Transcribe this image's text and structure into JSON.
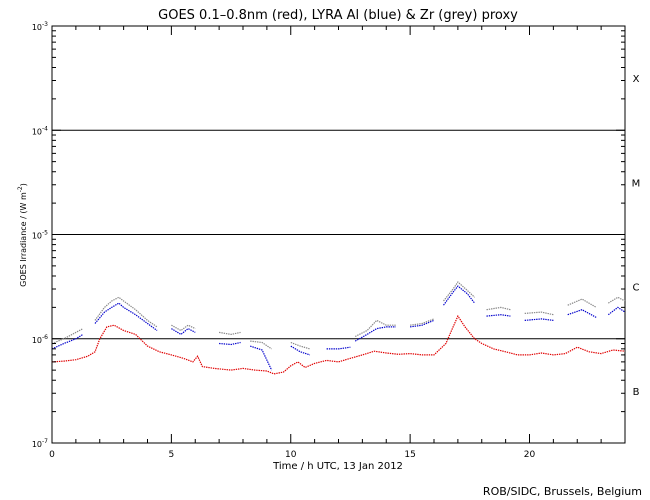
{
  "chart_data": {
    "type": "scatter",
    "title": "GOES 0.1–0.8nm (red), LYRA Al (blue) & Zr (grey) proxy",
    "xlabel": "Time / h UTC, 13 Jan 2012",
    "ylabel_main": "GOES Irradiance / (W m",
    "ylabel_sup": "-2",
    "ylabel_close": ")",
    "xlim": [
      0,
      24
    ],
    "ylim": [
      1e-07,
      0.001
    ],
    "yscale": "log",
    "x_ticks": [
      {
        "value": 0,
        "label": "0"
      },
      {
        "value": 5,
        "label": "5"
      },
      {
        "value": 10,
        "label": "10"
      },
      {
        "value": 15,
        "label": "15"
      },
      {
        "value": 20,
        "label": "20"
      }
    ],
    "y_ticks": [
      {
        "value": 0.001,
        "base": "10",
        "exp": "-3"
      },
      {
        "value": 0.0001,
        "base": "10",
        "exp": "-4"
      },
      {
        "value": 1e-05,
        "base": "10",
        "exp": "-5"
      },
      {
        "value": 1e-06,
        "base": "10",
        "exp": "-6"
      },
      {
        "value": 1e-07,
        "base": "10",
        "exp": "-7"
      }
    ],
    "flare_class_lines": [
      0.0001,
      1e-05,
      1e-06
    ],
    "flare_classes": [
      {
        "label": "X",
        "y": 0.000316
      },
      {
        "label": "M",
        "y": 3.16e-05
      },
      {
        "label": "C",
        "y": 3.16e-06
      },
      {
        "label": "B",
        "y": 3.16e-07
      }
    ],
    "colors": {
      "goes": "#e00000",
      "al": "#0000cc",
      "zr": "#888888"
    },
    "series": [
      {
        "key": "goes",
        "segments": [
          [
            [
              0,
              6e-07
            ],
            [
              0.5,
              6.1e-07
            ],
            [
              1.0,
              6.3e-07
            ],
            [
              1.5,
              6.8e-07
            ],
            [
              1.8,
              7.5e-07
            ],
            [
              2.0,
              1e-06
            ],
            [
              2.3,
              1.3e-06
            ],
            [
              2.6,
              1.35e-06
            ],
            [
              3.0,
              1.2e-06
            ],
            [
              3.5,
              1.1e-06
            ],
            [
              4.0,
              8.5e-07
            ],
            [
              4.5,
              7.5e-07
            ],
            [
              5.0,
              7e-07
            ],
            [
              5.5,
              6.5e-07
            ],
            [
              5.9,
              6e-07
            ],
            [
              6.1,
              6.8e-07
            ],
            [
              6.3,
              5.4e-07
            ],
            [
              6.8,
              5.2e-07
            ],
            [
              7.5,
              5e-07
            ],
            [
              8.0,
              5.2e-07
            ],
            [
              8.5,
              5e-07
            ],
            [
              9.0,
              4.9e-07
            ],
            [
              9.3,
              4.6e-07
            ],
            [
              9.7,
              4.8e-07
            ],
            [
              10.0,
              5.5e-07
            ],
            [
              10.3,
              6e-07
            ],
            [
              10.6,
              5.3e-07
            ],
            [
              11.0,
              5.8e-07
            ],
            [
              11.5,
              6.2e-07
            ],
            [
              12.0,
              6e-07
            ],
            [
              12.5,
              6.5e-07
            ],
            [
              13.0,
              7e-07
            ],
            [
              13.5,
              7.6e-07
            ],
            [
              14.0,
              7.3e-07
            ],
            [
              14.5,
              7.1e-07
            ],
            [
              15.0,
              7.2e-07
            ],
            [
              15.5,
              7e-07
            ],
            [
              16.0,
              7e-07
            ],
            [
              16.5,
              9e-07
            ],
            [
              16.8,
              1.3e-06
            ],
            [
              17.0,
              1.65e-06
            ],
            [
              17.3,
              1.3e-06
            ],
            [
              17.7,
              1e-06
            ],
            [
              18.0,
              9e-07
            ],
            [
              18.5,
              8e-07
            ],
            [
              19.0,
              7.5e-07
            ],
            [
              19.5,
              7e-07
            ],
            [
              20.0,
              7e-07
            ],
            [
              20.5,
              7.3e-07
            ],
            [
              21.0,
              7e-07
            ],
            [
              21.5,
              7.2e-07
            ],
            [
              22.0,
              8.3e-07
            ],
            [
              22.5,
              7.5e-07
            ],
            [
              23.0,
              7.2e-07
            ],
            [
              23.5,
              7.8e-07
            ],
            [
              24.0,
              7.6e-07
            ]
          ]
        ]
      },
      {
        "key": "zr",
        "segments": [
          [
            [
              0,
              9e-07
            ],
            [
              0.5,
              1e-06
            ],
            [
              1.0,
              1.15e-06
            ],
            [
              1.3,
              1.25e-06
            ]
          ],
          [
            [
              1.8,
              1.5e-06
            ],
            [
              2.2,
              2e-06
            ],
            [
              2.5,
              2.3e-06
            ],
            [
              2.8,
              2.5e-06
            ],
            [
              3.0,
              2.3e-06
            ],
            [
              3.5,
              1.9e-06
            ],
            [
              4.0,
              1.5e-06
            ],
            [
              4.4,
              1.3e-06
            ]
          ],
          [
            [
              5.0,
              1.35e-06
            ],
            [
              5.4,
              1.2e-06
            ],
            [
              5.7,
              1.35e-06
            ],
            [
              6.0,
              1.25e-06
            ]
          ],
          [
            [
              7.0,
              1.15e-06
            ],
            [
              7.5,
              1.1e-06
            ],
            [
              7.9,
              1.15e-06
            ]
          ],
          [
            [
              8.3,
              9.5e-07
            ],
            [
              8.8,
              9.2e-07
            ],
            [
              9.2,
              8e-07
            ]
          ],
          [
            [
              10.0,
              9.2e-07
            ],
            [
              10.4,
              8.5e-07
            ],
            [
              10.8,
              8e-07
            ]
          ],
          [
            [
              12.7,
              1.05e-06
            ],
            [
              13.2,
              1.2e-06
            ],
            [
              13.6,
              1.5e-06
            ],
            [
              14.0,
              1.35e-06
            ],
            [
              14.4,
              1.35e-06
            ]
          ],
          [
            [
              15.0,
              1.35e-06
            ],
            [
              15.5,
              1.4e-06
            ],
            [
              16.0,
              1.55e-06
            ]
          ],
          [
            [
              16.4,
              2.3e-06
            ],
            [
              16.8,
              3e-06
            ],
            [
              17.0,
              3.5e-06
            ],
            [
              17.4,
              2.9e-06
            ],
            [
              17.7,
              2.5e-06
            ]
          ],
          [
            [
              18.2,
              1.9e-06
            ],
            [
              18.8,
              2e-06
            ],
            [
              19.2,
              1.9e-06
            ]
          ],
          [
            [
              19.8,
              1.75e-06
            ],
            [
              20.5,
              1.8e-06
            ],
            [
              21.0,
              1.7e-06
            ]
          ],
          [
            [
              21.6,
              2.1e-06
            ],
            [
              22.2,
              2.4e-06
            ],
            [
              22.8,
              2e-06
            ]
          ],
          [
            [
              23.3,
              2.2e-06
            ],
            [
              23.7,
              2.5e-06
            ],
            [
              24.0,
              2.3e-06
            ]
          ]
        ]
      },
      {
        "key": "al",
        "segments": [
          [
            [
              0,
              8e-07
            ],
            [
              0.5,
              9e-07
            ],
            [
              1.0,
              1e-06
            ],
            [
              1.3,
              1.1e-06
            ]
          ],
          [
            [
              1.8,
              1.4e-06
            ],
            [
              2.2,
              1.8e-06
            ],
            [
              2.5,
              2e-06
            ],
            [
              2.8,
              2.2e-06
            ],
            [
              3.0,
              2e-06
            ],
            [
              3.5,
              1.7e-06
            ],
            [
              4.0,
              1.4e-06
            ],
            [
              4.4,
              1.2e-06
            ]
          ],
          [
            [
              5.0,
              1.25e-06
            ],
            [
              5.4,
              1.1e-06
            ],
            [
              5.7,
              1.25e-06
            ],
            [
              6.0,
              1.15e-06
            ]
          ],
          [
            [
              7.0,
              9e-07
            ],
            [
              7.5,
              8.8e-07
            ],
            [
              7.9,
              9.2e-07
            ]
          ],
          [
            [
              8.3,
              8.5e-07
            ],
            [
              8.8,
              7.8e-07
            ],
            [
              9.2,
              5e-07
            ]
          ],
          [
            [
              10.0,
              8.5e-07
            ],
            [
              10.4,
              7.5e-07
            ],
            [
              10.8,
              7e-07
            ]
          ],
          [
            [
              11.5,
              8e-07
            ],
            [
              12.0,
              8e-07
            ],
            [
              12.5,
              8.3e-07
            ]
          ],
          [
            [
              12.7,
              9.5e-07
            ],
            [
              13.2,
              1.1e-06
            ],
            [
              13.6,
              1.25e-06
            ],
            [
              14.0,
              1.3e-06
            ],
            [
              14.4,
              1.3e-06
            ]
          ],
          [
            [
              15.0,
              1.3e-06
            ],
            [
              15.5,
              1.35e-06
            ],
            [
              16.0,
              1.5e-06
            ]
          ],
          [
            [
              16.4,
              2.1e-06
            ],
            [
              16.8,
              2.8e-06
            ],
            [
              17.0,
              3.2e-06
            ],
            [
              17.4,
              2.7e-06
            ],
            [
              17.7,
              2.2e-06
            ]
          ],
          [
            [
              18.2,
              1.65e-06
            ],
            [
              18.8,
              1.7e-06
            ],
            [
              19.2,
              1.65e-06
            ]
          ],
          [
            [
              19.8,
              1.5e-06
            ],
            [
              20.5,
              1.55e-06
            ],
            [
              21.0,
              1.5e-06
            ]
          ],
          [
            [
              21.6,
              1.7e-06
            ],
            [
              22.2,
              1.9e-06
            ],
            [
              22.8,
              1.6e-06
            ]
          ],
          [
            [
              23.3,
              1.7e-06
            ],
            [
              23.7,
              2e-06
            ],
            [
              24.0,
              1.8e-06
            ]
          ]
        ]
      }
    ]
  },
  "credit": "ROB/SIDC, Brussels, Belgium"
}
